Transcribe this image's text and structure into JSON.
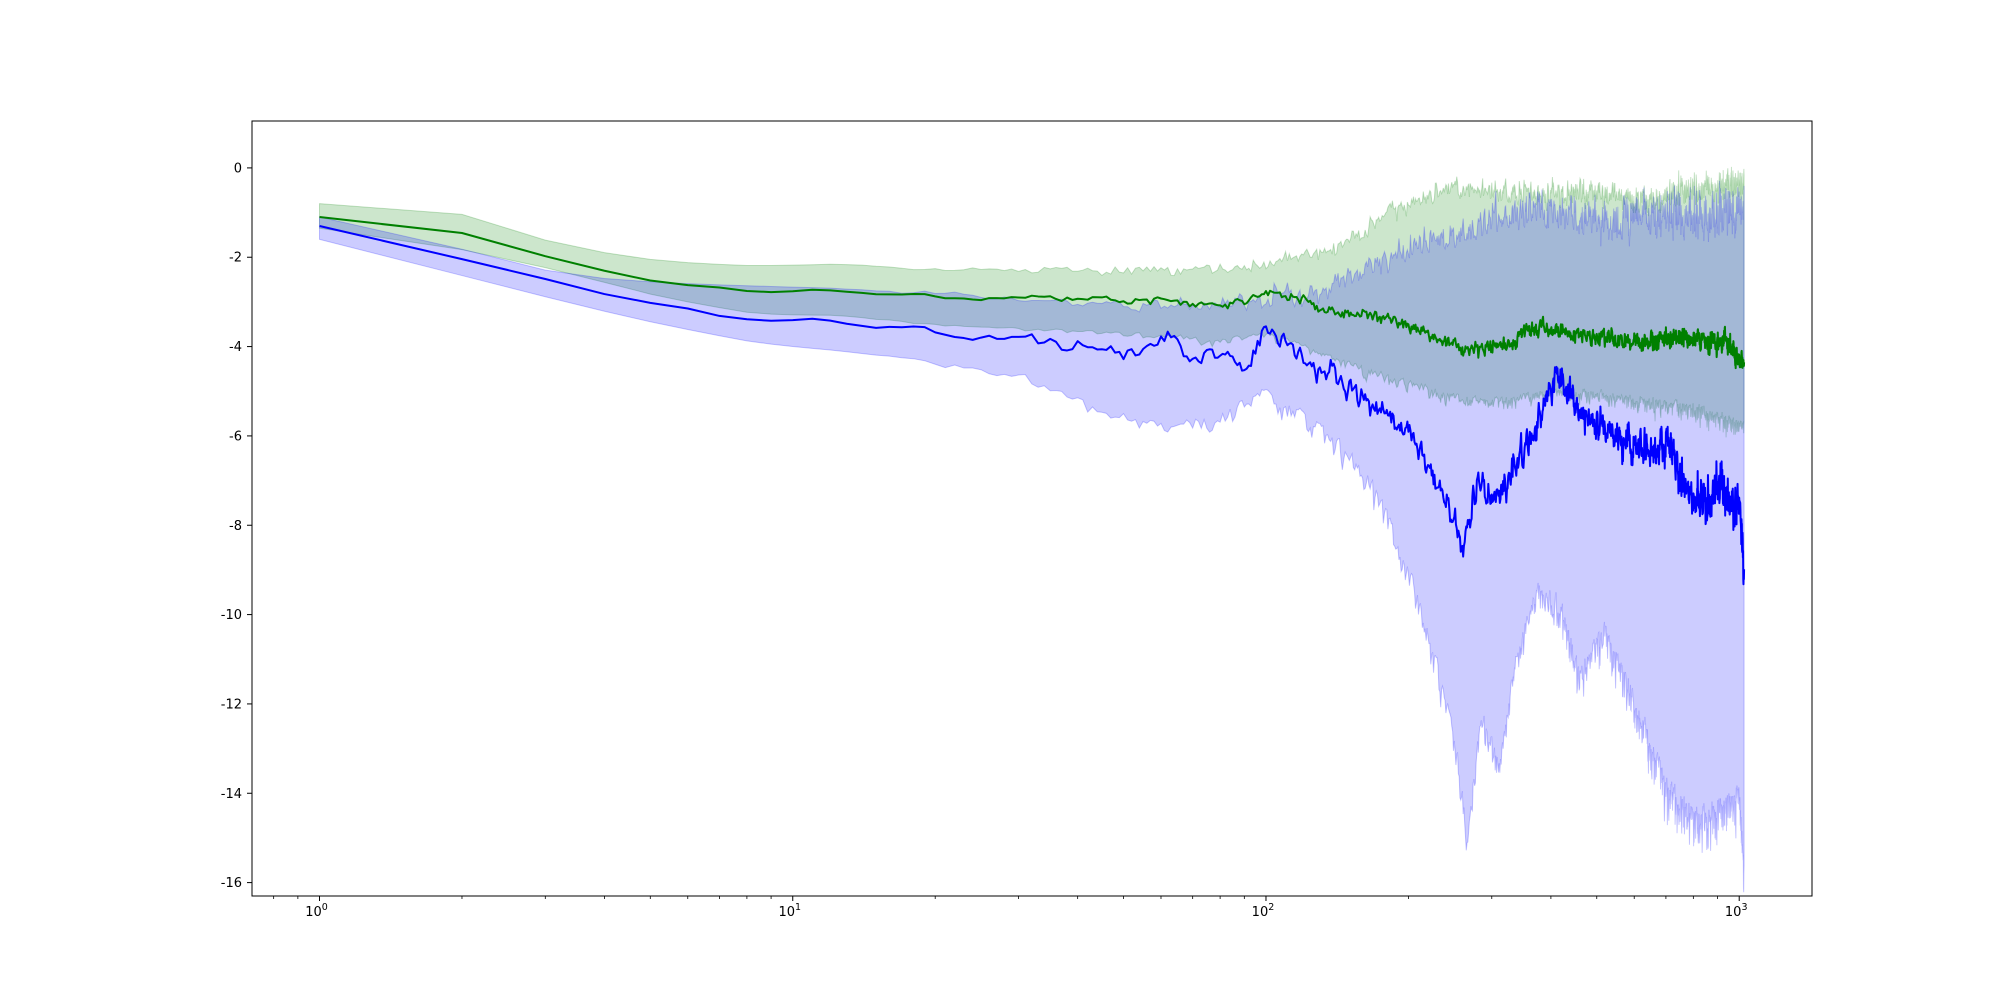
{
  "chart_data": {
    "type": "line",
    "title": "",
    "xlabel": "",
    "ylabel": "",
    "x_scale": "log",
    "xlim": [
      0.72,
      1425
    ],
    "ylim": [
      -16.3,
      1.05
    ],
    "x_ticks": [
      {
        "value": 1,
        "base": "10",
        "exp": "0"
      },
      {
        "value": 10,
        "base": "10",
        "exp": "1"
      },
      {
        "value": 100,
        "base": "10",
        "exp": "2"
      },
      {
        "value": 1000,
        "base": "10",
        "exp": "3"
      }
    ],
    "y_ticks": [
      {
        "value": 0,
        "label": "0"
      },
      {
        "value": -2,
        "label": "-2"
      },
      {
        "value": -4,
        "label": "-4"
      },
      {
        "value": -6,
        "label": "-6"
      },
      {
        "value": -8,
        "label": "-8"
      },
      {
        "value": -10,
        "label": "-10"
      },
      {
        "value": -12,
        "label": "-12"
      },
      {
        "value": -14,
        "label": "-14"
      },
      {
        "value": -16,
        "label": "-16"
      }
    ],
    "grid": false,
    "legend": "none",
    "series": [
      {
        "color": "#008000",
        "band_color": "#008000",
        "x_range": [
          1,
          1024
        ],
        "mean": [
          [
            1,
            -1.1
          ],
          [
            2,
            -1.75
          ],
          [
            3,
            -2.4
          ],
          [
            5,
            -2.7
          ],
          [
            7,
            -2.72
          ],
          [
            8,
            -2.82
          ],
          [
            9,
            -2.8
          ],
          [
            11,
            -2.7
          ],
          [
            13,
            -2.8
          ],
          [
            15,
            -2.85
          ],
          [
            18,
            -2.82
          ],
          [
            22,
            -2.95
          ],
          [
            27,
            -2.9
          ],
          [
            32,
            -2.88
          ],
          [
            40,
            -2.95
          ],
          [
            50,
            -3.0
          ],
          [
            60,
            -2.95
          ],
          [
            70,
            -3.1
          ],
          [
            80,
            -3.05
          ],
          [
            92,
            -3.0
          ],
          [
            100,
            -2.72
          ],
          [
            110,
            -2.95
          ],
          [
            125,
            -3.05
          ],
          [
            140,
            -3.2
          ],
          [
            160,
            -3.25
          ],
          [
            180,
            -3.4
          ],
          [
            200,
            -3.6
          ],
          [
            220,
            -3.75
          ],
          [
            250,
            -4.0
          ],
          [
            280,
            -4.1
          ],
          [
            320,
            -3.9
          ],
          [
            370,
            -3.65
          ],
          [
            420,
            -3.6
          ],
          [
            480,
            -3.8
          ],
          [
            550,
            -3.85
          ],
          [
            650,
            -3.9
          ],
          [
            750,
            -3.8
          ],
          [
            850,
            -3.9
          ],
          [
            950,
            -3.9
          ],
          [
            1024,
            -4.4
          ]
        ],
        "band_upper": [
          [
            1,
            -0.8
          ],
          [
            2,
            -1.2
          ],
          [
            3,
            -2.0
          ],
          [
            5,
            -2.15
          ],
          [
            8,
            -2.2
          ],
          [
            12,
            -2.15
          ],
          [
            20,
            -2.3
          ],
          [
            30,
            -2.25
          ],
          [
            50,
            -2.3
          ],
          [
            80,
            -2.3
          ],
          [
            100,
            -2.15
          ],
          [
            130,
            -1.9
          ],
          [
            160,
            -1.4
          ],
          [
            200,
            -0.8
          ],
          [
            250,
            -0.4
          ],
          [
            300,
            -0.6
          ],
          [
            380,
            -0.5
          ],
          [
            500,
            -0.6
          ],
          [
            650,
            -0.7
          ],
          [
            800,
            -0.5
          ],
          [
            1024,
            -0.3
          ]
        ],
        "band_lower": [
          [
            1,
            -1.35
          ],
          [
            2,
            -2.15
          ],
          [
            3,
            -2.5
          ],
          [
            5,
            -3.0
          ],
          [
            8,
            -3.3
          ],
          [
            12,
            -3.3
          ],
          [
            20,
            -3.5
          ],
          [
            30,
            -3.55
          ],
          [
            50,
            -3.65
          ],
          [
            80,
            -3.75
          ],
          [
            100,
            -3.65
          ],
          [
            130,
            -4.05
          ],
          [
            160,
            -4.4
          ],
          [
            200,
            -4.7
          ],
          [
            250,
            -5.0
          ],
          [
            300,
            -5.1
          ],
          [
            380,
            -4.9
          ],
          [
            500,
            -4.9
          ],
          [
            650,
            -5.1
          ],
          [
            800,
            -5.2
          ],
          [
            1024,
            -5.6
          ]
        ]
      },
      {
        "color": "#0000ff",
        "band_color": "#0000ff",
        "x_range": [
          1,
          1024
        ],
        "mean": [
          [
            1,
            -1.3
          ],
          [
            2,
            -2.65
          ],
          [
            3,
            -2.85
          ],
          [
            4,
            -3.1
          ],
          [
            6,
            -3.25
          ],
          [
            7,
            -3.45
          ],
          [
            9,
            -3.45
          ],
          [
            11,
            -3.35
          ],
          [
            13,
            -3.55
          ],
          [
            15,
            -3.6
          ],
          [
            18,
            -3.55
          ],
          [
            22,
            -3.85
          ],
          [
            27,
            -3.75
          ],
          [
            33,
            -3.85
          ],
          [
            40,
            -4.0
          ],
          [
            48,
            -4.2
          ],
          [
            55,
            -4.05
          ],
          [
            62,
            -3.8
          ],
          [
            70,
            -4.35
          ],
          [
            80,
            -4.1
          ],
          [
            90,
            -4.5
          ],
          [
            100,
            -3.5
          ],
          [
            112,
            -4.05
          ],
          [
            125,
            -4.4
          ],
          [
            140,
            -4.6
          ],
          [
            160,
            -5.2
          ],
          [
            180,
            -5.6
          ],
          [
            200,
            -5.9
          ],
          [
            220,
            -6.6
          ],
          [
            240,
            -7.5
          ],
          [
            260,
            -8.6
          ],
          [
            280,
            -6.8
          ],
          [
            300,
            -7.5
          ],
          [
            330,
            -6.8
          ],
          [
            370,
            -5.8
          ],
          [
            410,
            -4.6
          ],
          [
            450,
            -5.2
          ],
          [
            500,
            -5.8
          ],
          [
            550,
            -6.0
          ],
          [
            600,
            -6.2
          ],
          [
            650,
            -6.4
          ],
          [
            700,
            -6.1
          ],
          [
            750,
            -7.0
          ],
          [
            800,
            -7.2
          ],
          [
            850,
            -7.5
          ],
          [
            900,
            -7.1
          ],
          [
            950,
            -7.6
          ],
          [
            1000,
            -7.7
          ],
          [
            1024,
            -9.2
          ]
        ],
        "band_upper": [
          [
            1,
            -1.1
          ],
          [
            2,
            -2.3
          ],
          [
            3,
            -2.6
          ],
          [
            5,
            -2.6
          ],
          [
            8,
            -2.65
          ],
          [
            12,
            -2.7
          ],
          [
            20,
            -2.85
          ],
          [
            30,
            -2.9
          ],
          [
            50,
            -3.05
          ],
          [
            80,
            -3.05
          ],
          [
            100,
            -2.9
          ],
          [
            130,
            -2.7
          ],
          [
            160,
            -2.3
          ],
          [
            200,
            -1.8
          ],
          [
            250,
            -1.5
          ],
          [
            300,
            -1.2
          ],
          [
            380,
            -0.9
          ],
          [
            500,
            -1.2
          ],
          [
            650,
            -1.0
          ],
          [
            800,
            -1.1
          ],
          [
            1024,
            -0.9
          ]
        ],
        "band_lower": [
          [
            1,
            -1.6
          ],
          [
            2,
            -2.95
          ],
          [
            3,
            -3.2
          ],
          [
            5,
            -3.6
          ],
          [
            8,
            -3.95
          ],
          [
            12,
            -4.1
          ],
          [
            20,
            -4.3
          ],
          [
            30,
            -4.55
          ],
          [
            45,
            -5.3
          ],
          [
            60,
            -5.6
          ],
          [
            80,
            -5.4
          ],
          [
            100,
            -4.8
          ],
          [
            125,
            -5.5
          ],
          [
            150,
            -6.2
          ],
          [
            175,
            -7.2
          ],
          [
            200,
            -8.8
          ],
          [
            225,
            -10.5
          ],
          [
            250,
            -12.5
          ],
          [
            265,
            -14.5
          ],
          [
            285,
            -12.0
          ],
          [
            310,
            -13.0
          ],
          [
            340,
            -10.5
          ],
          [
            380,
            -9.0
          ],
          [
            420,
            -9.5
          ],
          [
            460,
            -11.0
          ],
          [
            520,
            -10.0
          ],
          [
            600,
            -11.5
          ],
          [
            700,
            -13.5
          ],
          [
            800,
            -14.2
          ],
          [
            900,
            -14.0
          ],
          [
            1000,
            -13.5
          ],
          [
            1024,
            -15.4
          ]
        ]
      }
    ]
  }
}
